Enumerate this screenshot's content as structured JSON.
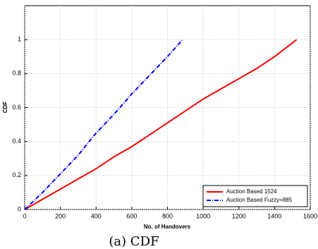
{
  "chart_data": {
    "type": "line",
    "xlabel": "No. of Handovers",
    "ylabel": "CDF",
    "caption": "(a) CDF",
    "xlim": [
      0,
      1600
    ],
    "xticks": [
      0,
      200,
      400,
      600,
      800,
      1000,
      1200,
      1400,
      1600
    ],
    "ylim": [
      0,
      1.2
    ],
    "yticks": [
      0,
      0.2,
      0.4,
      0.6,
      0.8,
      1
    ],
    "grid": true,
    "legend": "lower right",
    "series": [
      {
        "name": "Auction Based 1524",
        "color": "#ff0000",
        "dash": "solid",
        "x": [
          0,
          100,
          200,
          300,
          400,
          500,
          600,
          700,
          800,
          900,
          1000,
          1100,
          1200,
          1300,
          1400,
          1524
        ],
        "values": [
          0,
          0.06,
          0.12,
          0.18,
          0.24,
          0.31,
          0.37,
          0.44,
          0.51,
          0.58,
          0.65,
          0.71,
          0.77,
          0.83,
          0.9,
          1
        ]
      },
      {
        "name": "Auction Based Fuzzy=885",
        "color": "#0000ff",
        "dash": "dashdot",
        "x": [
          0,
          100,
          200,
          300,
          400,
          500,
          600,
          700,
          800,
          885
        ],
        "values": [
          0,
          0.1,
          0.21,
          0.32,
          0.45,
          0.56,
          0.68,
          0.79,
          0.9,
          1
        ]
      }
    ]
  }
}
